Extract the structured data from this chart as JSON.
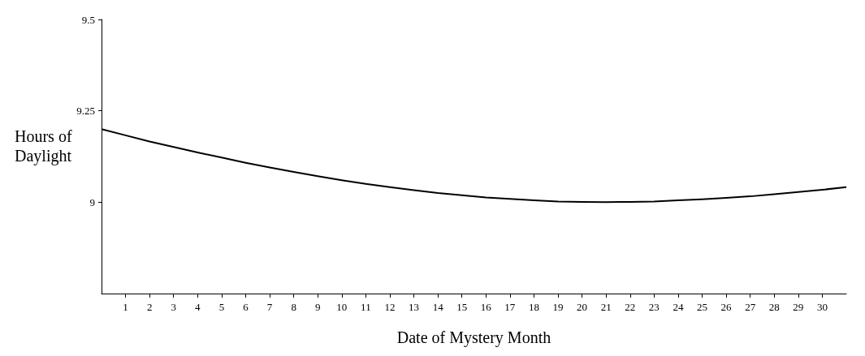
{
  "chart_data": {
    "type": "line",
    "xlabel": "Date of Mystery Month",
    "ylabel": "Hours of Daylight",
    "x": [
      0,
      1,
      2,
      3,
      4,
      5,
      6,
      7,
      8,
      9,
      10,
      11,
      12,
      13,
      14,
      15,
      16,
      17,
      18,
      19,
      20,
      21,
      22,
      23,
      24,
      25,
      26,
      27,
      28,
      29,
      30,
      31
    ],
    "series": [
      {
        "color": "#000000",
        "values": [
          9.2,
          9.183,
          9.166,
          9.151,
          9.136,
          9.122,
          9.108,
          9.095,
          9.083,
          9.071,
          9.06,
          9.05,
          9.041,
          9.033,
          9.025,
          9.019,
          9.013,
          9.009,
          9.005,
          9.002,
          9.001,
          9.0,
          9.001,
          9.002,
          9.005,
          9.008,
          9.012,
          9.016,
          9.022,
          9.028,
          9.034,
          9.041
        ]
      }
    ],
    "xlim": [
      0,
      31
    ],
    "xticks": [
      1,
      2,
      3,
      4,
      5,
      6,
      7,
      8,
      9,
      10,
      11,
      12,
      13,
      14,
      15,
      16,
      17,
      18,
      19,
      20,
      21,
      22,
      23,
      24,
      25,
      26,
      27,
      28,
      29,
      30
    ],
    "ylim": [
      8.75,
      9.5
    ],
    "yticks": [
      9,
      9.25,
      9.5
    ],
    "grid": false,
    "marker": "none",
    "line_style": "solid"
  }
}
